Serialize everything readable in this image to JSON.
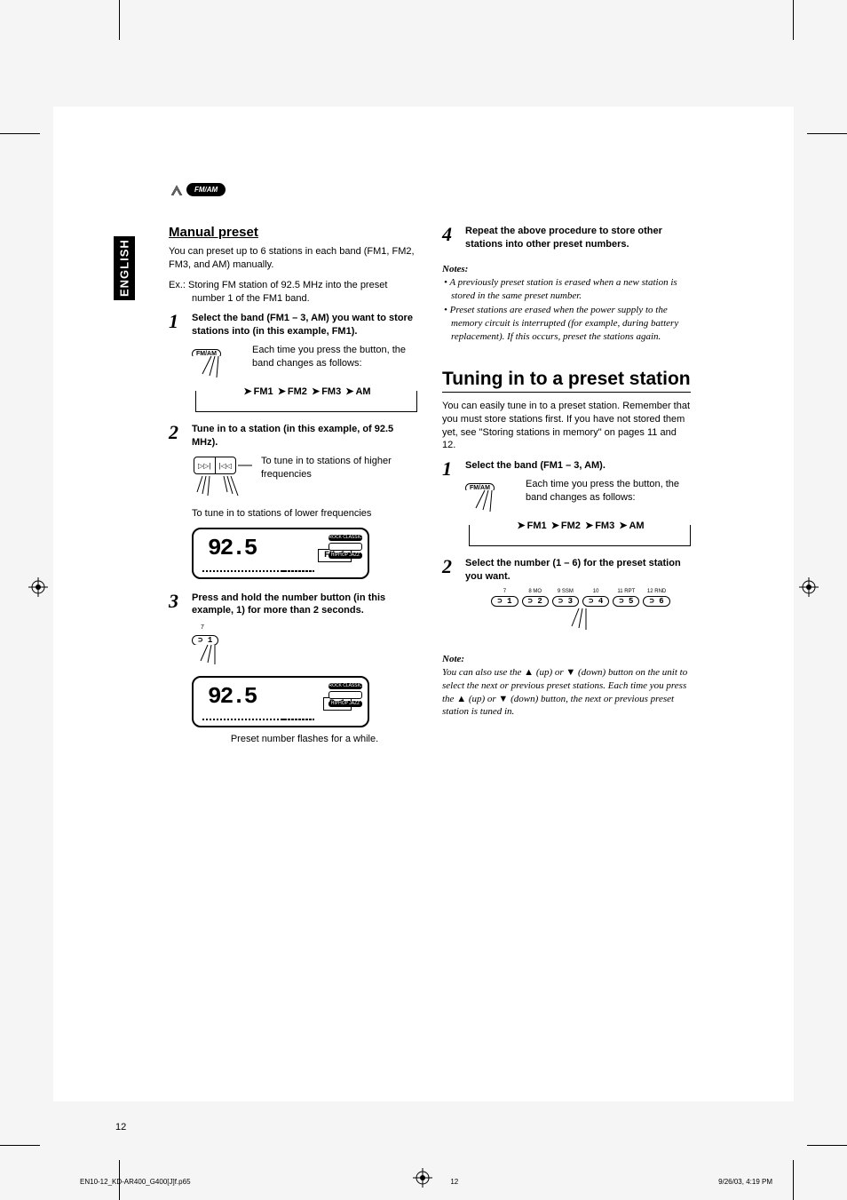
{
  "language": "ENGLISH",
  "topbadge": "FM/AM",
  "left": {
    "heading": "Manual preset",
    "intro": "You can preset up to 6 stations in each band (FM1, FM2, FM3, and AM) manually.",
    "example": "Ex.:  Storing FM station of 92.5 MHz into the preset number 1 of the FM1 band.",
    "step1": {
      "head": "Select the band (FM1 – 3, AM) you want to store stations into (in this example, FM1).",
      "sub": "Each time you press the button, the band changes as follows:",
      "btn": "FM/AM"
    },
    "cycle": {
      "a": "FM1",
      "b": "FM2",
      "c": "FM3",
      "d": "AM"
    },
    "step2": {
      "head": "Tune in to a station (in this example, of 92.5 MHz).",
      "sub_hi": "To tune in to stations of higher frequencies",
      "sub_lo": "To tune in to stations of lower frequencies",
      "rocker_l": "▷▷|",
      "rocker_r": "|◁◁"
    },
    "display1": {
      "freq": "92.5",
      "band": "FM 1"
    },
    "step3": {
      "head": "Press and hold the number button (in this example, 1) for more than 2 seconds.",
      "btn_num": "7",
      "btn_label": "⊃ 1"
    },
    "display2": {
      "freq": "92.5",
      "band": "P 1"
    },
    "caption3": "Preset number flashes for a while."
  },
  "right": {
    "step4": {
      "head": "Repeat the above procedure to store other stations into other preset numbers."
    },
    "notes_h": "Notes:",
    "notes": [
      "A previously preset station is erased when a new station is stored in the same preset number.",
      "Preset stations are erased when the power supply to the memory circuit is interrupted (for example, during battery replacement). If this occurs, preset the stations again."
    ],
    "heading2": "Tuning in to a preset station",
    "intro2": "You can easily tune in to a preset station. Remember that you must store stations first. If you have not stored them yet, see \"Storing stations in memory\" on pages 11 and 12.",
    "r_step1": {
      "head": "Select the band (FM1 – 3, AM).",
      "sub": "Each time you press the button, the band changes as follows:",
      "btn": "FM/AM"
    },
    "r_step2": {
      "head": "Select the number (1 – 6) for the preset station you want."
    },
    "preset_labels": [
      "7",
      "8 MO",
      "9 SSM",
      "10",
      "11 RPT",
      "12 RND"
    ],
    "preset_btns": [
      "⊃ 1",
      "⊃ 2",
      "⊃ 3",
      "⊃ 4",
      "⊃ 5",
      "⊃ 6"
    ],
    "note2_h": "Note:",
    "note2": "You can also use the ▲ (up) or ▼ (down) button on the unit to select the next or previous preset stations. Each time you press the ▲ (up) or ▼ (down) button, the next or previous preset station is tuned in."
  },
  "pagenum": "12",
  "footer": {
    "file": "EN10-12_KD-AR400_G400[J]f.p65",
    "page": "12",
    "date": "9/26/03, 4:19 PM"
  },
  "colors": {
    "bar1": [
      "#000",
      "#000",
      "#282828",
      "#505050",
      "#787878",
      "#a0a0a0",
      "#c8c8c8",
      "#fff"
    ],
    "bar2": [
      "#fff",
      "#00ffff",
      "#ff00ff",
      "#ffff00",
      "#ff0000",
      "#00ff00",
      "#0000ff",
      "#000",
      "#ff66cc"
    ]
  }
}
